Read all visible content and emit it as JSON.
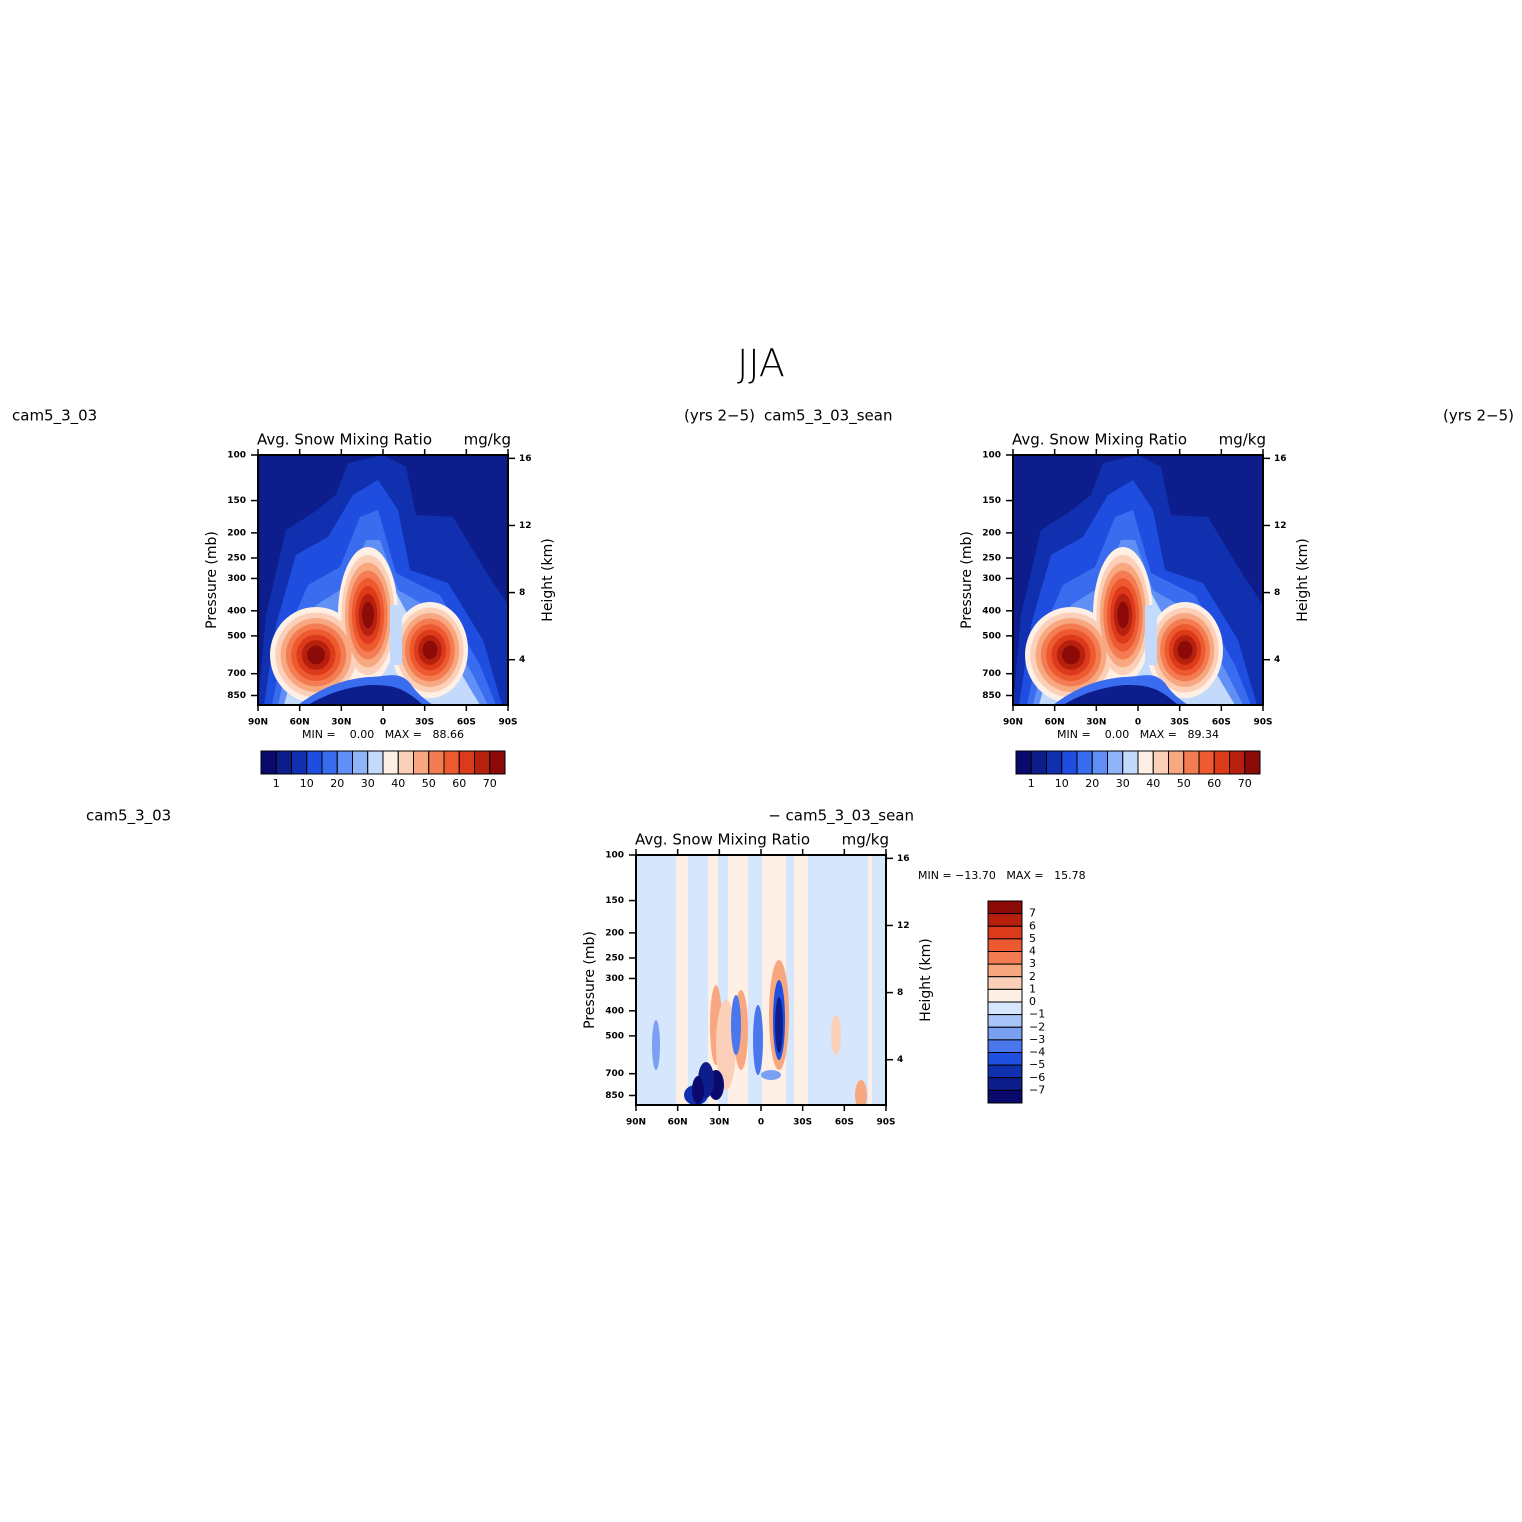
{
  "suptitle": "JJA",
  "chart_data": [
    {
      "type": "contour",
      "left_string": "cam5_3_03",
      "right_string": "(yrs 2−5)",
      "title": "Avg. Snow Mixing Ratio",
      "units": "mg/kg",
      "ylabel": "Pressure (mb)",
      "y2label": "Height (km)",
      "xlim": [
        90,
        -90
      ],
      "xticks": [
        {
          "value": 90,
          "label": "90N"
        },
        {
          "value": 60,
          "label": "60N"
        },
        {
          "value": 30,
          "label": "30N"
        },
        0,
        {
          "value": -30,
          "label": "30S"
        },
        {
          "value": -60,
          "label": "60S"
        },
        {
          "value": -90,
          "label": "90S"
        }
      ],
      "ylim": [
        925,
        100
      ],
      "ylog": true,
      "yticks": [
        100,
        150,
        200,
        250,
        300,
        400,
        500,
        700,
        850
      ],
      "y2lim": [
        1.3,
        16.2
      ],
      "y2ticks": [
        4,
        8,
        12,
        16
      ],
      "stats": "MIN =    0.00   MAX =   88.66",
      "colorbar": {
        "orientation": "horizontal",
        "labels": [
          1,
          10,
          20,
          30,
          40,
          50,
          60,
          70
        ],
        "colors": [
          "#0a0a6e",
          "#0d1e8c",
          "#1030b0",
          "#1f4de0",
          "#3a6cf0",
          "#6090f5",
          "#90b4f8",
          "#c4dafc",
          "#fff0e6",
          "#fcd0b8",
          "#f8a880",
          "#f47c52",
          "#ee5a30",
          "#dc3a1a",
          "#b8200e",
          "#8c0a08"
        ]
      }
    },
    {
      "type": "contour",
      "left_string": "cam5_3_03_sean",
      "right_string": "(yrs 2−5)",
      "title": "Avg. Snow Mixing Ratio",
      "units": "mg/kg",
      "ylabel": "Pressure (mb)",
      "y2label": "Height (km)",
      "xlim": [
        90,
        -90
      ],
      "xticks": [
        {
          "value": 90,
          "label": "90N"
        },
        {
          "value": 60,
          "label": "60N"
        },
        {
          "value": 30,
          "label": "30N"
        },
        0,
        {
          "value": -30,
          "label": "30S"
        },
        {
          "value": -60,
          "label": "60S"
        },
        {
          "value": -90,
          "label": "90S"
        }
      ],
      "ylim": [
        925,
        100
      ],
      "ylog": true,
      "yticks": [
        100,
        150,
        200,
        250,
        300,
        400,
        500,
        700,
        850
      ],
      "y2lim": [
        1.3,
        16.2
      ],
      "y2ticks": [
        4,
        8,
        12,
        16
      ],
      "stats": "MIN =    0.00   MAX =   89.34",
      "colorbar": {
        "orientation": "horizontal",
        "labels": [
          1,
          10,
          20,
          30,
          40,
          50,
          60,
          70
        ],
        "colors": [
          "#0a0a6e",
          "#0d1e8c",
          "#1030b0",
          "#1f4de0",
          "#3a6cf0",
          "#6090f5",
          "#90b4f8",
          "#c4dafc",
          "#fff0e6",
          "#fcd0b8",
          "#f8a880",
          "#f47c52",
          "#ee5a30",
          "#dc3a1a",
          "#b8200e",
          "#8c0a08"
        ]
      }
    },
    {
      "type": "contour-diff",
      "left_string": "cam5_3_03",
      "right_string": "− cam5_3_03_sean",
      "title": "Avg. Snow Mixing Ratio",
      "units": "mg/kg",
      "ylabel": "Pressure (mb)",
      "y2label": "Height (km)",
      "xlim": [
        90,
        -90
      ],
      "xticks": [
        {
          "value": 90,
          "label": "90N"
        },
        {
          "value": 60,
          "label": "60N"
        },
        {
          "value": 30,
          "label": "30N"
        },
        0,
        {
          "value": -30,
          "label": "30S"
        },
        {
          "value": -60,
          "label": "60S"
        },
        {
          "value": -90,
          "label": "90S"
        }
      ],
      "ylim": [
        925,
        100
      ],
      "ylog": true,
      "yticks": [
        100,
        150,
        200,
        250,
        300,
        400,
        500,
        700,
        850
      ],
      "y2lim": [
        1.3,
        16.2
      ],
      "y2ticks": [
        4,
        8,
        12,
        16
      ],
      "stats": "MIN = −13.70   MAX =   15.78",
      "colorbar": {
        "orientation": "vertical",
        "labels": [
          7,
          6,
          5,
          4,
          3,
          2,
          1,
          0,
          {
            "value": -1,
            "label": "−1"
          },
          {
            "value": -2,
            "label": "−2"
          },
          {
            "value": -3,
            "label": "−3"
          },
          {
            "value": -4,
            "label": "−4"
          },
          {
            "value": -5,
            "label": "−5"
          },
          {
            "value": -6,
            "label": "−6"
          },
          {
            "value": -7,
            "label": "−7"
          }
        ],
        "colors": [
          "#8c0a08",
          "#b8200e",
          "#dc3a1a",
          "#ee5a30",
          "#f47c52",
          "#f8a880",
          "#fcd0b8",
          "#fff0e6",
          "#d6e6fc",
          "#a8c4f8",
          "#7aa0f2",
          "#4a78ec",
          "#2050e0",
          "#1030b0",
          "#0d1e8c",
          "#0a0a6e"
        ]
      }
    }
  ]
}
